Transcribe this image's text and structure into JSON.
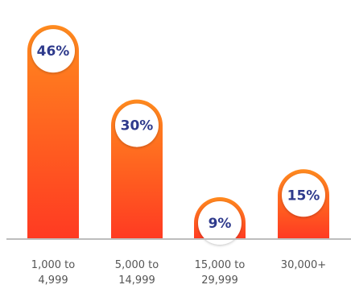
{
  "chart_data": {
    "type": "bar",
    "categories": [
      [
        "1,000 to",
        "4,999"
      ],
      [
        "5,000 to",
        "14,999"
      ],
      [
        "15,000 to",
        "29,999"
      ],
      [
        "30,000+"
      ]
    ],
    "values": [
      46,
      30,
      9,
      15
    ],
    "value_labels": [
      "46%",
      "30%",
      "9%",
      "15%"
    ],
    "title": "",
    "xlabel": "",
    "ylabel": "",
    "ylim": [
      0,
      50
    ],
    "grid": false,
    "legend": "none",
    "colors": {
      "bar_top": "#ff8a1e",
      "bar_bottom": "#ff3a22",
      "label_circle": "#ffffff",
      "label_text": "#2e3a8c",
      "axis": "#bdbdbd",
      "tick_text": "#555555"
    }
  }
}
